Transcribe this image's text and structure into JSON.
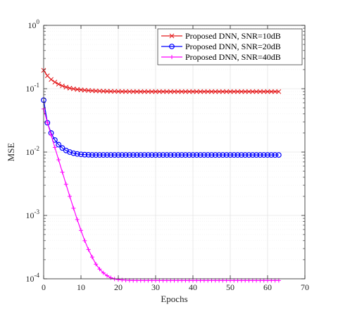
{
  "chart_data": {
    "type": "line",
    "title": "",
    "xlabel": "Epochs",
    "ylabel": "MSE",
    "xlim": [
      0,
      70
    ],
    "ylim": [
      0.0001,
      1
    ],
    "yscale": "log",
    "grid": true,
    "legend_position": "top-right",
    "x_ticks": [
      0,
      10,
      20,
      30,
      40,
      50,
      60,
      70
    ],
    "x_tick_labels": [
      "0",
      "10",
      "20",
      "30",
      "40",
      "50",
      "60",
      "70"
    ],
    "y_ticks": [
      0.0001,
      0.001,
      0.01,
      0.1,
      1
    ],
    "y_tick_labels": [
      {
        "base": "10",
        "exp": "-4"
      },
      {
        "base": "10",
        "exp": "-3"
      },
      {
        "base": "10",
        "exp": "-2"
      },
      {
        "base": "10",
        "exp": "-1"
      },
      {
        "base": "10",
        "exp": "0"
      }
    ],
    "x": [
      0,
      1,
      2,
      3,
      4,
      5,
      6,
      7,
      8,
      9,
      10,
      11,
      12,
      13,
      14,
      15,
      16,
      17,
      18,
      19,
      20,
      21,
      22,
      23,
      24,
      25,
      26,
      27,
      28,
      29,
      30,
      31,
      32,
      33,
      34,
      35,
      36,
      37,
      38,
      39,
      40,
      41,
      42,
      43,
      44,
      45,
      46,
      47,
      48,
      49,
      50,
      51,
      52,
      53,
      54,
      55,
      56,
      57,
      58,
      59,
      60,
      61,
      62,
      63
    ],
    "series": [
      {
        "name": "Proposed DNN, SNR=10dB",
        "color": "#e41a1c",
        "marker": "x",
        "values": [
          0.195,
          0.16,
          0.14,
          0.127,
          0.118,
          0.111,
          0.106,
          0.102,
          0.0995,
          0.0975,
          0.096,
          0.0948,
          0.0938,
          0.093,
          0.0924,
          0.0919,
          0.0915,
          0.0912,
          0.0909,
          0.0907,
          0.0905,
          0.0903,
          0.0902,
          0.0901,
          0.09,
          0.09,
          0.09,
          0.09,
          0.09,
          0.09,
          0.09,
          0.09,
          0.09,
          0.09,
          0.09,
          0.09,
          0.09,
          0.09,
          0.09,
          0.09,
          0.09,
          0.09,
          0.09,
          0.09,
          0.09,
          0.09,
          0.09,
          0.09,
          0.09,
          0.09,
          0.09,
          0.09,
          0.09,
          0.09,
          0.09,
          0.09,
          0.09,
          0.09,
          0.09,
          0.09,
          0.09,
          0.09,
          0.09,
          0.09
        ]
      },
      {
        "name": "Proposed DNN, SNR=20dB",
        "color": "#0000ff",
        "marker": "o",
        "values": [
          0.066,
          0.029,
          0.02,
          0.0155,
          0.0131,
          0.0116,
          0.0106,
          0.01,
          0.0096,
          0.00935,
          0.0092,
          0.0091,
          0.00905,
          0.009,
          0.009,
          0.009,
          0.009,
          0.009,
          0.009,
          0.009,
          0.009,
          0.009,
          0.009,
          0.009,
          0.009,
          0.009,
          0.009,
          0.009,
          0.009,
          0.009,
          0.009,
          0.009,
          0.009,
          0.009,
          0.009,
          0.009,
          0.009,
          0.009,
          0.009,
          0.009,
          0.009,
          0.009,
          0.009,
          0.009,
          0.009,
          0.009,
          0.009,
          0.009,
          0.009,
          0.009,
          0.009,
          0.009,
          0.009,
          0.009,
          0.009,
          0.009,
          0.009,
          0.009,
          0.009,
          0.009,
          0.009,
          0.009,
          0.009,
          0.009
        ]
      },
      {
        "name": "Proposed DNN, SNR=40dB",
        "color": "#ff00ff",
        "marker": "+",
        "values": [
          0.048,
          0.0292,
          0.0186,
          0.01185,
          0.00755,
          0.00483,
          0.0031,
          0.002,
          0.0013,
          0.00086,
          0.00058,
          0.0004,
          0.00029,
          0.00022,
          0.00017,
          0.000142,
          0.000124,
          0.000112,
          0.000104,
          9.95e-05,
          9.72e-05,
          9.58e-05,
          9.5e-05,
          9.45e-05,
          9.42e-05,
          9.4e-05,
          9.4e-05,
          9.4e-05,
          9.4e-05,
          9.4e-05,
          9.4e-05,
          9.4e-05,
          9.4e-05,
          9.4e-05,
          9.4e-05,
          9.4e-05,
          9.4e-05,
          9.4e-05,
          9.4e-05,
          9.4e-05,
          9.4e-05,
          9.4e-05,
          9.4e-05,
          9.4e-05,
          9.4e-05,
          9.4e-05,
          9.4e-05,
          9.4e-05,
          9.4e-05,
          9.4e-05,
          9.4e-05,
          9.4e-05,
          9.4e-05,
          9.4e-05,
          9.4e-05,
          9.4e-05,
          9.4e-05,
          9.4e-05,
          9.4e-05,
          9.4e-05,
          9.4e-05,
          9.4e-05,
          9.4e-05,
          9.4e-05
        ]
      }
    ]
  }
}
